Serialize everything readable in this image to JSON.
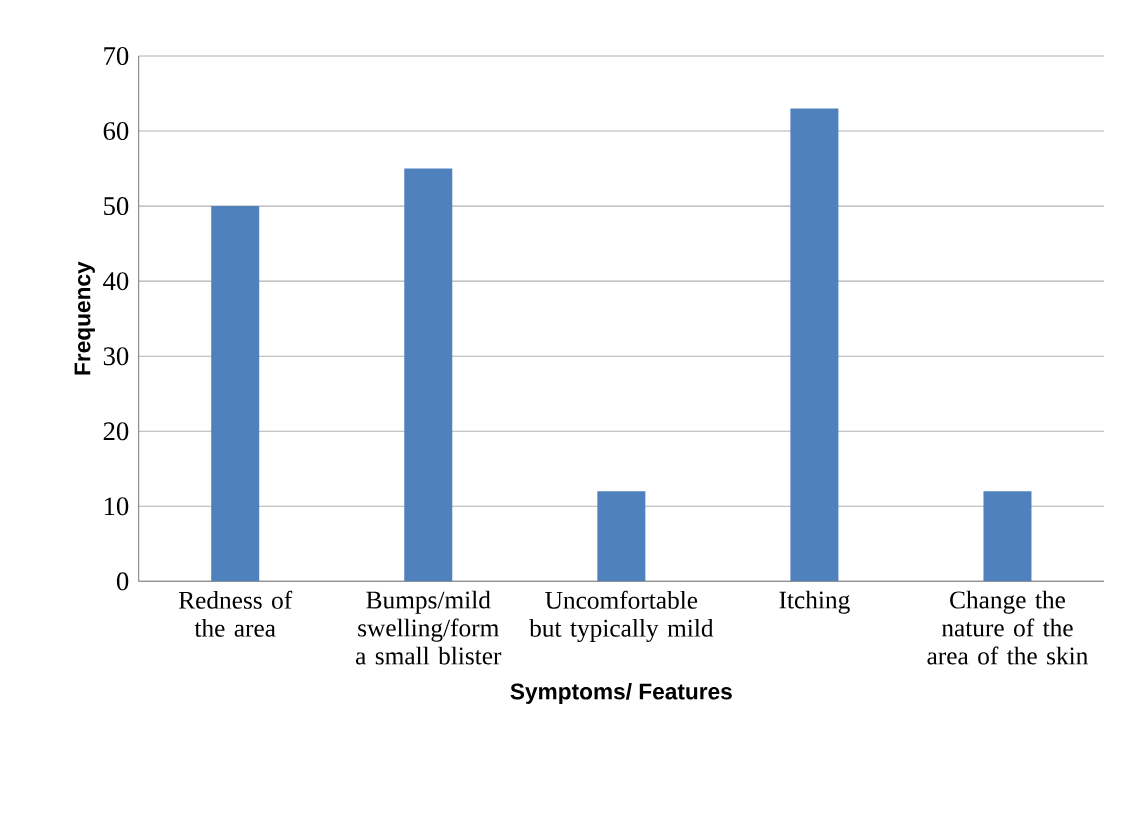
{
  "chart_data": {
    "type": "bar",
    "xlabel": "Symptoms/ Features",
    "ylabel": "Frequency",
    "categories": [
      "Redness of the area",
      "Bumps/mild swelling/form a small blister",
      "Uncomfortable but typically mild",
      "Itching",
      "Change the nature of the area of the skin"
    ],
    "values": [
      50,
      55,
      12,
      63,
      12
    ],
    "color": "#4f81bd",
    "ylim": [
      0,
      70
    ],
    "yticks": [
      0,
      10,
      20,
      30,
      40,
      50,
      60,
      70
    ],
    "grid": "y"
  }
}
